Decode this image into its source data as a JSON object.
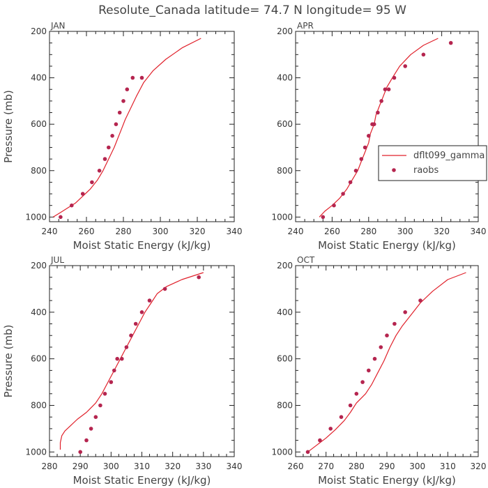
{
  "figure": {
    "title": "Resolute_Canada  latitude= 74.7 N longitude= 95 W"
  },
  "colors": {
    "model": "#e0202a",
    "obs": "#b5254f",
    "axis": "#222222"
  },
  "chart_data": [
    {
      "type": "line",
      "title": "JAN",
      "xlabel": "Moist Static Energy (kJ/kg)",
      "ylabel": "Pressure (mb)",
      "xlim": [
        240,
        340
      ],
      "xticks": [
        240,
        260,
        280,
        300,
        320,
        340
      ],
      "ylim": [
        1020,
        200
      ],
      "yticks": [
        200,
        400,
        600,
        800,
        1000
      ],
      "series": [
        {
          "name": "dflt099_gamma",
          "kind": "line",
          "x": [
            242,
            246,
            250,
            254,
            258,
            262,
            266,
            269,
            272,
            275,
            277,
            279,
            281,
            284,
            287,
            291,
            296,
            303,
            312,
            322
          ],
          "y": [
            1000,
            980,
            960,
            940,
            910,
            880,
            840,
            800,
            750,
            700,
            660,
            620,
            580,
            530,
            480,
            420,
            370,
            320,
            270,
            230
          ]
        },
        {
          "name": "raobs",
          "kind": "scatter",
          "x": [
            246,
            252,
            258,
            263,
            267,
            270,
            272,
            274,
            276,
            278,
            280,
            282,
            285,
            290
          ],
          "y": [
            1000,
            950,
            900,
            850,
            800,
            750,
            700,
            650,
            600,
            550,
            500,
            450,
            400,
            400
          ]
        }
      ]
    },
    {
      "type": "line",
      "title": "APR",
      "xlabel": "Moist Static Energy (kJ/kg)",
      "ylabel": "",
      "xlim": [
        240,
        340
      ],
      "xticks": [
        240,
        260,
        280,
        300,
        320,
        340
      ],
      "ylim": [
        1020,
        200
      ],
      "yticks": [
        200,
        400,
        600,
        800,
        1000
      ],
      "legend": {
        "position": "right",
        "entries": [
          "dflt099_gamma",
          "raobs"
        ]
      },
      "series": [
        {
          "name": "dflt099_gamma",
          "kind": "line",
          "x": [
            253,
            256,
            260,
            264,
            268,
            271,
            274,
            276,
            278,
            280,
            281,
            283,
            284,
            286,
            288,
            290,
            293,
            297,
            303,
            310,
            318
          ],
          "y": [
            1000,
            975,
            950,
            920,
            880,
            840,
            800,
            760,
            720,
            680,
            640,
            600,
            560,
            520,
            480,
            440,
            400,
            350,
            300,
            260,
            230
          ]
        },
        {
          "name": "raobs",
          "kind": "scatter",
          "x": [
            255,
            261,
            266,
            270,
            273,
            276,
            278,
            280,
            282,
            283,
            285,
            287,
            289,
            291,
            294,
            300,
            310,
            325
          ],
          "y": [
            1000,
            950,
            900,
            850,
            800,
            750,
            700,
            650,
            600,
            600,
            550,
            500,
            450,
            450,
            400,
            350,
            300,
            250
          ]
        }
      ]
    },
    {
      "type": "line",
      "title": "JUL",
      "xlabel": "Moist Static Energy (kJ/kg)",
      "ylabel": "Pressure (mb)",
      "xlim": [
        280,
        340
      ],
      "xticks": [
        280,
        290,
        300,
        310,
        320,
        330,
        340
      ],
      "ylim": [
        1020,
        200
      ],
      "yticks": [
        200,
        400,
        600,
        800,
        1000
      ],
      "series": [
        {
          "name": "dflt099_gamma",
          "kind": "line",
          "x": [
            283.5,
            283.5,
            284,
            285,
            287,
            289,
            292,
            295,
            297,
            299,
            301,
            303,
            305,
            307,
            309,
            311,
            313,
            315,
            318,
            323,
            330
          ],
          "y": [
            990,
            960,
            930,
            910,
            885,
            860,
            830,
            790,
            750,
            700,
            650,
            600,
            550,
            500,
            450,
            400,
            360,
            320,
            290,
            260,
            230
          ]
        },
        {
          "name": "raobs",
          "kind": "scatter",
          "x": [
            290,
            292,
            293.5,
            295,
            296.5,
            298,
            300,
            301,
            302,
            303.5,
            305,
            306.5,
            308,
            310,
            312.5,
            317.5,
            328.5
          ],
          "y": [
            1000,
            950,
            900,
            850,
            800,
            750,
            700,
            650,
            600,
            600,
            550,
            500,
            450,
            400,
            350,
            300,
            250
          ]
        }
      ]
    },
    {
      "type": "line",
      "title": "OCT",
      "xlabel": "Moist Static Energy (kJ/kg)",
      "ylabel": "",
      "xlim": [
        260,
        320
      ],
      "xticks": [
        260,
        270,
        280,
        290,
        300,
        310,
        320
      ],
      "ylim": [
        1020,
        200
      ],
      "yticks": [
        200,
        400,
        600,
        800,
        1000
      ],
      "series": [
        {
          "name": "dflt099_gamma",
          "kind": "line",
          "x": [
            264,
            267,
            270,
            273,
            276,
            278,
            280,
            283,
            285,
            287,
            289,
            291,
            293,
            295,
            298,
            301,
            305,
            310,
            316
          ],
          "y": [
            1000,
            970,
            940,
            905,
            865,
            830,
            790,
            750,
            710,
            660,
            610,
            550,
            500,
            460,
            410,
            360,
            310,
            260,
            230
          ]
        },
        {
          "name": "raobs",
          "kind": "scatter",
          "x": [
            264,
            268,
            271.5,
            275,
            278,
            280,
            282,
            284,
            286,
            288,
            290,
            292.5,
            296,
            301
          ],
          "y": [
            1000,
            950,
            900,
            850,
            800,
            750,
            700,
            650,
            600,
            550,
            500,
            450,
            400,
            350
          ]
        }
      ]
    }
  ]
}
